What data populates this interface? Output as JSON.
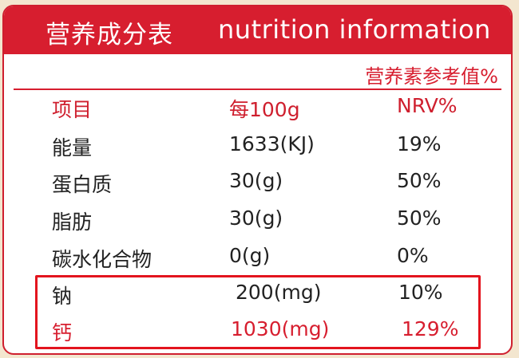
{
  "header": {
    "title_cn": "营养成分表",
    "title_en": "nutrition information"
  },
  "nrv_reference": "营养素参考值%",
  "columns": {
    "item": "项目",
    "per100g": "每100g",
    "nrv": "NRV%"
  },
  "rows": [
    {
      "item": "能量",
      "amount": "1633(KJ)",
      "nrv": "19%"
    },
    {
      "item": "蛋白质",
      "amount": "30(g)",
      "nrv": "50%"
    },
    {
      "item": "脂肪",
      "amount": "30(g)",
      "nrv": "50%"
    },
    {
      "item": "碳水化合物",
      "amount": "0(g)",
      "nrv": "0%"
    },
    {
      "item": "钠",
      "amount": "200(mg)",
      "nrv": "10%"
    },
    {
      "item": "钙",
      "amount": "1030(mg)",
      "nrv": "129%"
    }
  ],
  "colors": {
    "brand_red": "#d71e2f",
    "highlight_border": "#e3141e",
    "text": "#222222",
    "background": "#f3e6cf"
  }
}
